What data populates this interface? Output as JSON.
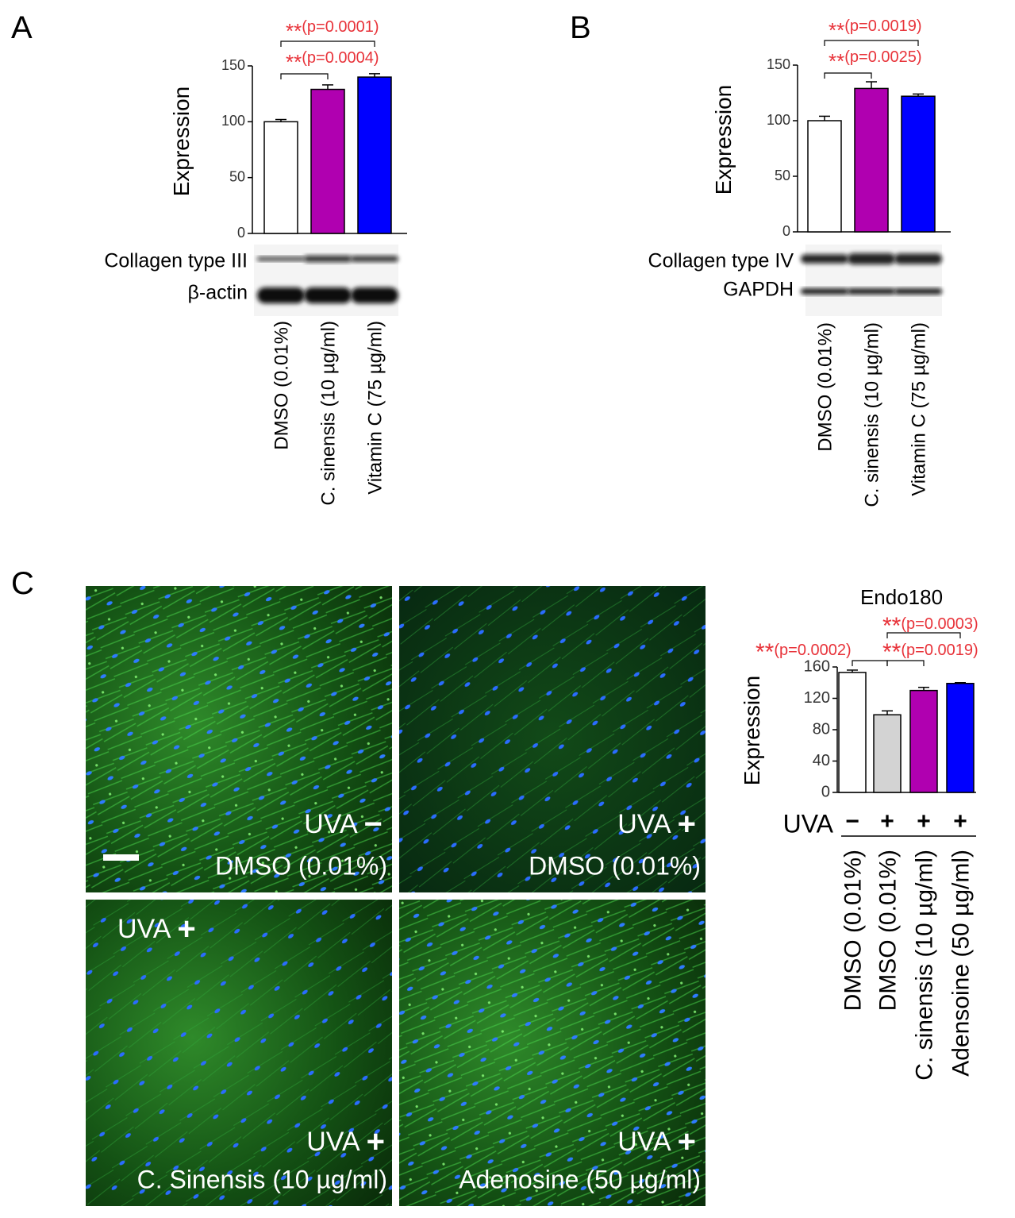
{
  "chart_data": [
    {
      "type": "bar",
      "panel": "A",
      "y_label": "Expression",
      "categories": [
        "DMSO (0.01%)",
        "C. sinensis (10 µg/ml)",
        "Vitamin C (75 µg/ml)"
      ],
      "values": [
        100,
        129,
        140
      ],
      "errors": [
        2,
        4,
        3
      ],
      "colors": [
        "#ffffff",
        "#b000b0",
        "#0000ff"
      ],
      "ylim": [
        0,
        150
      ],
      "yticks": [
        0,
        50,
        100,
        150
      ],
      "significance": [
        {
          "stars": "**",
          "p": "(p=0.0001)"
        },
        {
          "stars": "**",
          "p": "(p=0.0004)"
        }
      ],
      "blot_labels": [
        "Collagen type III",
        "β-actin"
      ]
    },
    {
      "type": "bar",
      "panel": "B",
      "y_label": "Expression",
      "categories": [
        "DMSO (0.01%)",
        "C. sinensis (10 µg/ml)",
        "Vitamin C (75 µg/ml)"
      ],
      "values": [
        100,
        129,
        122
      ],
      "errors": [
        4,
        6,
        2
      ],
      "colors": [
        "#ffffff",
        "#b000b0",
        "#0000ff"
      ],
      "ylim": [
        0,
        150
      ],
      "yticks": [
        0,
        50,
        100,
        150
      ],
      "significance": [
        {
          "stars": "**",
          "p": "(p=0.0019)"
        },
        {
          "stars": "**",
          "p": "(p=0.0025)"
        }
      ],
      "blot_labels": [
        "Collagen type IV",
        "GAPDH"
      ]
    },
    {
      "type": "bar",
      "panel": "C",
      "title": "Endo180",
      "y_label": "Expression",
      "categories": [
        "DMSO (0.01%)",
        "DMSO (0.01%)",
        "C. sinensis (10 µg/ml)",
        "Adensoine (50 µg/ml)"
      ],
      "values": [
        153,
        99,
        130,
        139
      ],
      "errors": [
        3,
        5,
        4,
        1
      ],
      "colors": [
        "#ffffff",
        "#d3d3d3",
        "#b000b0",
        "#0000ff"
      ],
      "ylim": [
        0,
        160
      ],
      "yticks": [
        0,
        40,
        80,
        120,
        160
      ],
      "uva_label": "UVA",
      "uva_signs": [
        "−",
        "+",
        "+",
        "+"
      ],
      "significance": [
        {
          "stars": "**",
          "p": "(p=0.0002)"
        },
        {
          "stars": "**",
          "p": "(p=0.0003)"
        },
        {
          "stars": "**",
          "p": "(p=0.0019)"
        }
      ]
    }
  ],
  "images": [
    {
      "uva_labels": [
        {
          "text": "UVA",
          "sign": "−"
        }
      ],
      "caption": "DMSO (0.01%)"
    },
    {
      "uva_labels": [
        {
          "text": "UVA",
          "sign": "+"
        }
      ],
      "caption": "DMSO (0.01%)"
    },
    {
      "uva_labels": [
        {
          "text": "UVA",
          "sign": "+"
        },
        {
          "text": "UVA",
          "sign": "+"
        }
      ],
      "caption": "C. Sinensis (10 µg/ml)"
    },
    {
      "uva_labels": [
        {
          "text": "UVA",
          "sign": "+"
        }
      ],
      "caption": "Adenosine (50 µg/ml)"
    }
  ]
}
